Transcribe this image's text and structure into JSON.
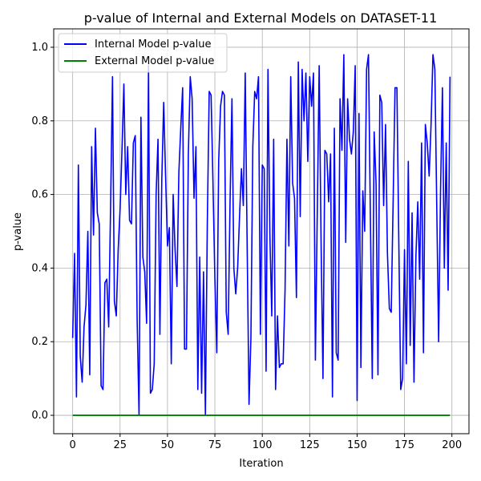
{
  "chart_data": {
    "type": "line",
    "title": "p-value of Internal and External Models on DATASET-11",
    "xlabel": "Iteration",
    "ylabel": "p-value",
    "xlim": [
      -10,
      209
    ],
    "ylim": [
      -0.05,
      1.05
    ],
    "xticks": [
      0,
      25,
      50,
      75,
      100,
      125,
      150,
      175,
      200
    ],
    "yticks": [
      0.0,
      0.2,
      0.4,
      0.6,
      0.8,
      1.0
    ],
    "ytick_labels": [
      "0.0",
      "0.2",
      "0.4",
      "0.6",
      "0.8",
      "1.0"
    ],
    "grid": true,
    "legend_position": "upper-left",
    "series": [
      {
        "name": "Internal Model p-value",
        "color": "#0000ff",
        "x_start": 0,
        "values": [
          0.21,
          0.44,
          0.05,
          0.68,
          0.16,
          0.09,
          0.24,
          0.3,
          0.5,
          0.11,
          0.73,
          0.49,
          0.78,
          0.55,
          0.52,
          0.08,
          0.07,
          0.36,
          0.37,
          0.24,
          0.57,
          0.92,
          0.31,
          0.27,
          0.45,
          0.56,
          0.72,
          0.9,
          0.6,
          0.73,
          0.53,
          0.52,
          0.74,
          0.76,
          0.26,
          0.0,
          0.81,
          0.43,
          0.39,
          0.25,
          0.95,
          0.06,
          0.07,
          0.14,
          0.6,
          0.75,
          0.22,
          0.64,
          0.85,
          0.65,
          0.46,
          0.51,
          0.14,
          0.6,
          0.45,
          0.35,
          0.66,
          0.78,
          0.89,
          0.18,
          0.18,
          0.71,
          0.92,
          0.86,
          0.59,
          0.73,
          0.07,
          0.43,
          0.06,
          0.39,
          0.0,
          0.52,
          0.88,
          0.87,
          0.63,
          0.37,
          0.17,
          0.69,
          0.84,
          0.88,
          0.87,
          0.28,
          0.22,
          0.58,
          0.86,
          0.4,
          0.33,
          0.4,
          0.54,
          0.67,
          0.57,
          0.93,
          0.47,
          0.03,
          0.21,
          0.73,
          0.88,
          0.86,
          0.92,
          0.22,
          0.68,
          0.67,
          0.12,
          0.94,
          0.49,
          0.27,
          0.75,
          0.07,
          0.27,
          0.13,
          0.14,
          0.14,
          0.34,
          0.75,
          0.46,
          0.92,
          0.63,
          0.59,
          0.32,
          0.96,
          0.54,
          0.94,
          0.8,
          0.93,
          0.69,
          0.92,
          0.84,
          0.93,
          0.15,
          0.55,
          0.95,
          0.47,
          0.1,
          0.72,
          0.71,
          0.58,
          0.71,
          0.05,
          0.78,
          0.17,
          0.15,
          0.86,
          0.72,
          0.98,
          0.47,
          0.86,
          0.75,
          0.71,
          0.77,
          0.95,
          0.04,
          0.82,
          0.13,
          0.61,
          0.5,
          0.94,
          0.98,
          0.54,
          0.1,
          0.77,
          0.63,
          0.11,
          0.87,
          0.85,
          0.57,
          0.79,
          0.44,
          0.29,
          0.28,
          0.58,
          0.89,
          0.89,
          0.47,
          0.07,
          0.1,
          0.45,
          0.14,
          0.69,
          0.19,
          0.55,
          0.09,
          0.43,
          0.58,
          0.37,
          0.74,
          0.17,
          0.79,
          0.74,
          0.65,
          0.79,
          0.98,
          0.94,
          0.57,
          0.2,
          0.61,
          0.89,
          0.4,
          0.74,
          0.34,
          0.92
        ]
      },
      {
        "name": "External Model p-value",
        "color": "#008000",
        "x_start": 0,
        "x_end": 199,
        "constant_value": 0.0
      }
    ]
  }
}
